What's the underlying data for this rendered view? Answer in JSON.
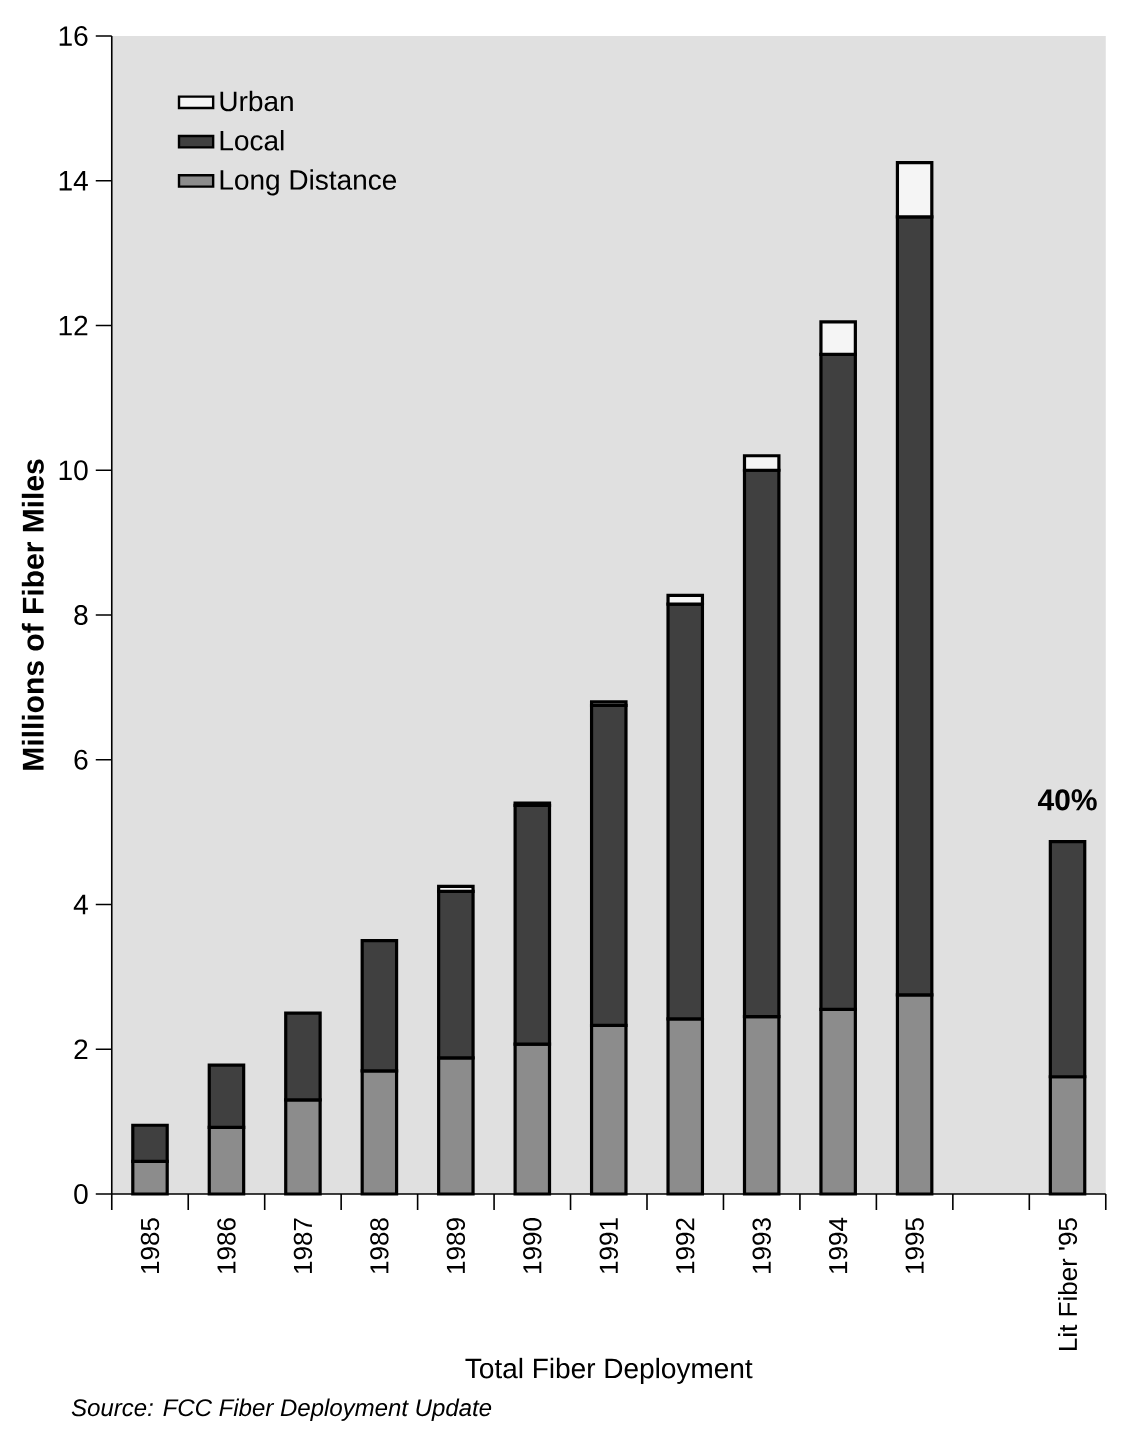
{
  "chart_data": {
    "type": "bar",
    "stacked": true,
    "categories": [
      "1985",
      "1986",
      "1987",
      "1988",
      "1989",
      "1990",
      "1991",
      "1992",
      "1993",
      "1994",
      "1995",
      null,
      "Lit Fiber '95"
    ],
    "series": [
      {
        "name": "Long Distance",
        "color": "#8c8c8c",
        "values": [
          0.45,
          0.92,
          1.3,
          1.7,
          1.88,
          2.07,
          2.33,
          2.42,
          2.45,
          2.55,
          2.75,
          null,
          1.62
        ]
      },
      {
        "name": "Local",
        "color": "#404040",
        "values": [
          0.5,
          0.86,
          1.2,
          1.8,
          2.3,
          3.3,
          4.42,
          5.73,
          7.55,
          9.05,
          10.75,
          null,
          3.25
        ]
      },
      {
        "name": "Urban",
        "color": "#f5f5f5",
        "values": [
          null,
          null,
          null,
          null,
          0.07,
          0.03,
          0.05,
          0.12,
          0.2,
          0.45,
          0.75,
          null,
          null
        ]
      }
    ],
    "xlabel": "Total Fiber Deployment",
    "ylabel": "Millions of Fiber Miles",
    "ylim": [
      0,
      16
    ],
    "yticks": [
      0,
      2,
      4,
      6,
      8,
      10,
      12,
      14,
      16
    ],
    "legend": "top left",
    "annotations": [
      "40%",
      "Source: FCC Fiber Deployment Update"
    ]
  }
}
